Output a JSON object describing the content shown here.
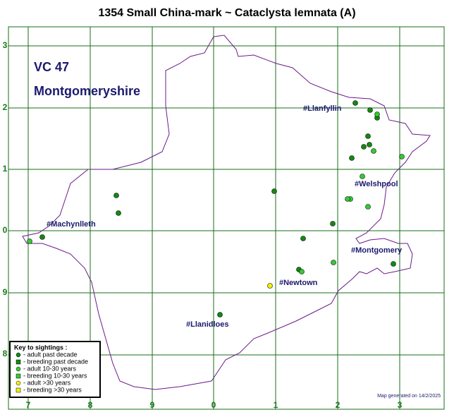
{
  "header": {
    "title": "1354 Small China-mark ~ Cataclysta lemnata (A)"
  },
  "region": {
    "code": "VC 47",
    "name": "Montgomeryshire"
  },
  "grid": {
    "x_labels": [
      "7",
      "8",
      "9",
      "0",
      "1",
      "2",
      "3"
    ],
    "y_labels": [
      "3",
      "2",
      "1",
      "0",
      "9",
      "8"
    ]
  },
  "towns": [
    "#Llanfyllin",
    "#Welshpool",
    "#Machynlleth",
    "#Montgomery",
    "#Newtown",
    "#Llanidloes"
  ],
  "key": {
    "title": "Key to sightings :",
    "items": [
      "- adult past decade",
      "- breeding past decade",
      "- adult 10-30 years",
      "- breeding 10-30 years",
      "- adult >30 years",
      "- breeding >30 years"
    ]
  },
  "footer": "Map generated on 14/2/2025"
}
